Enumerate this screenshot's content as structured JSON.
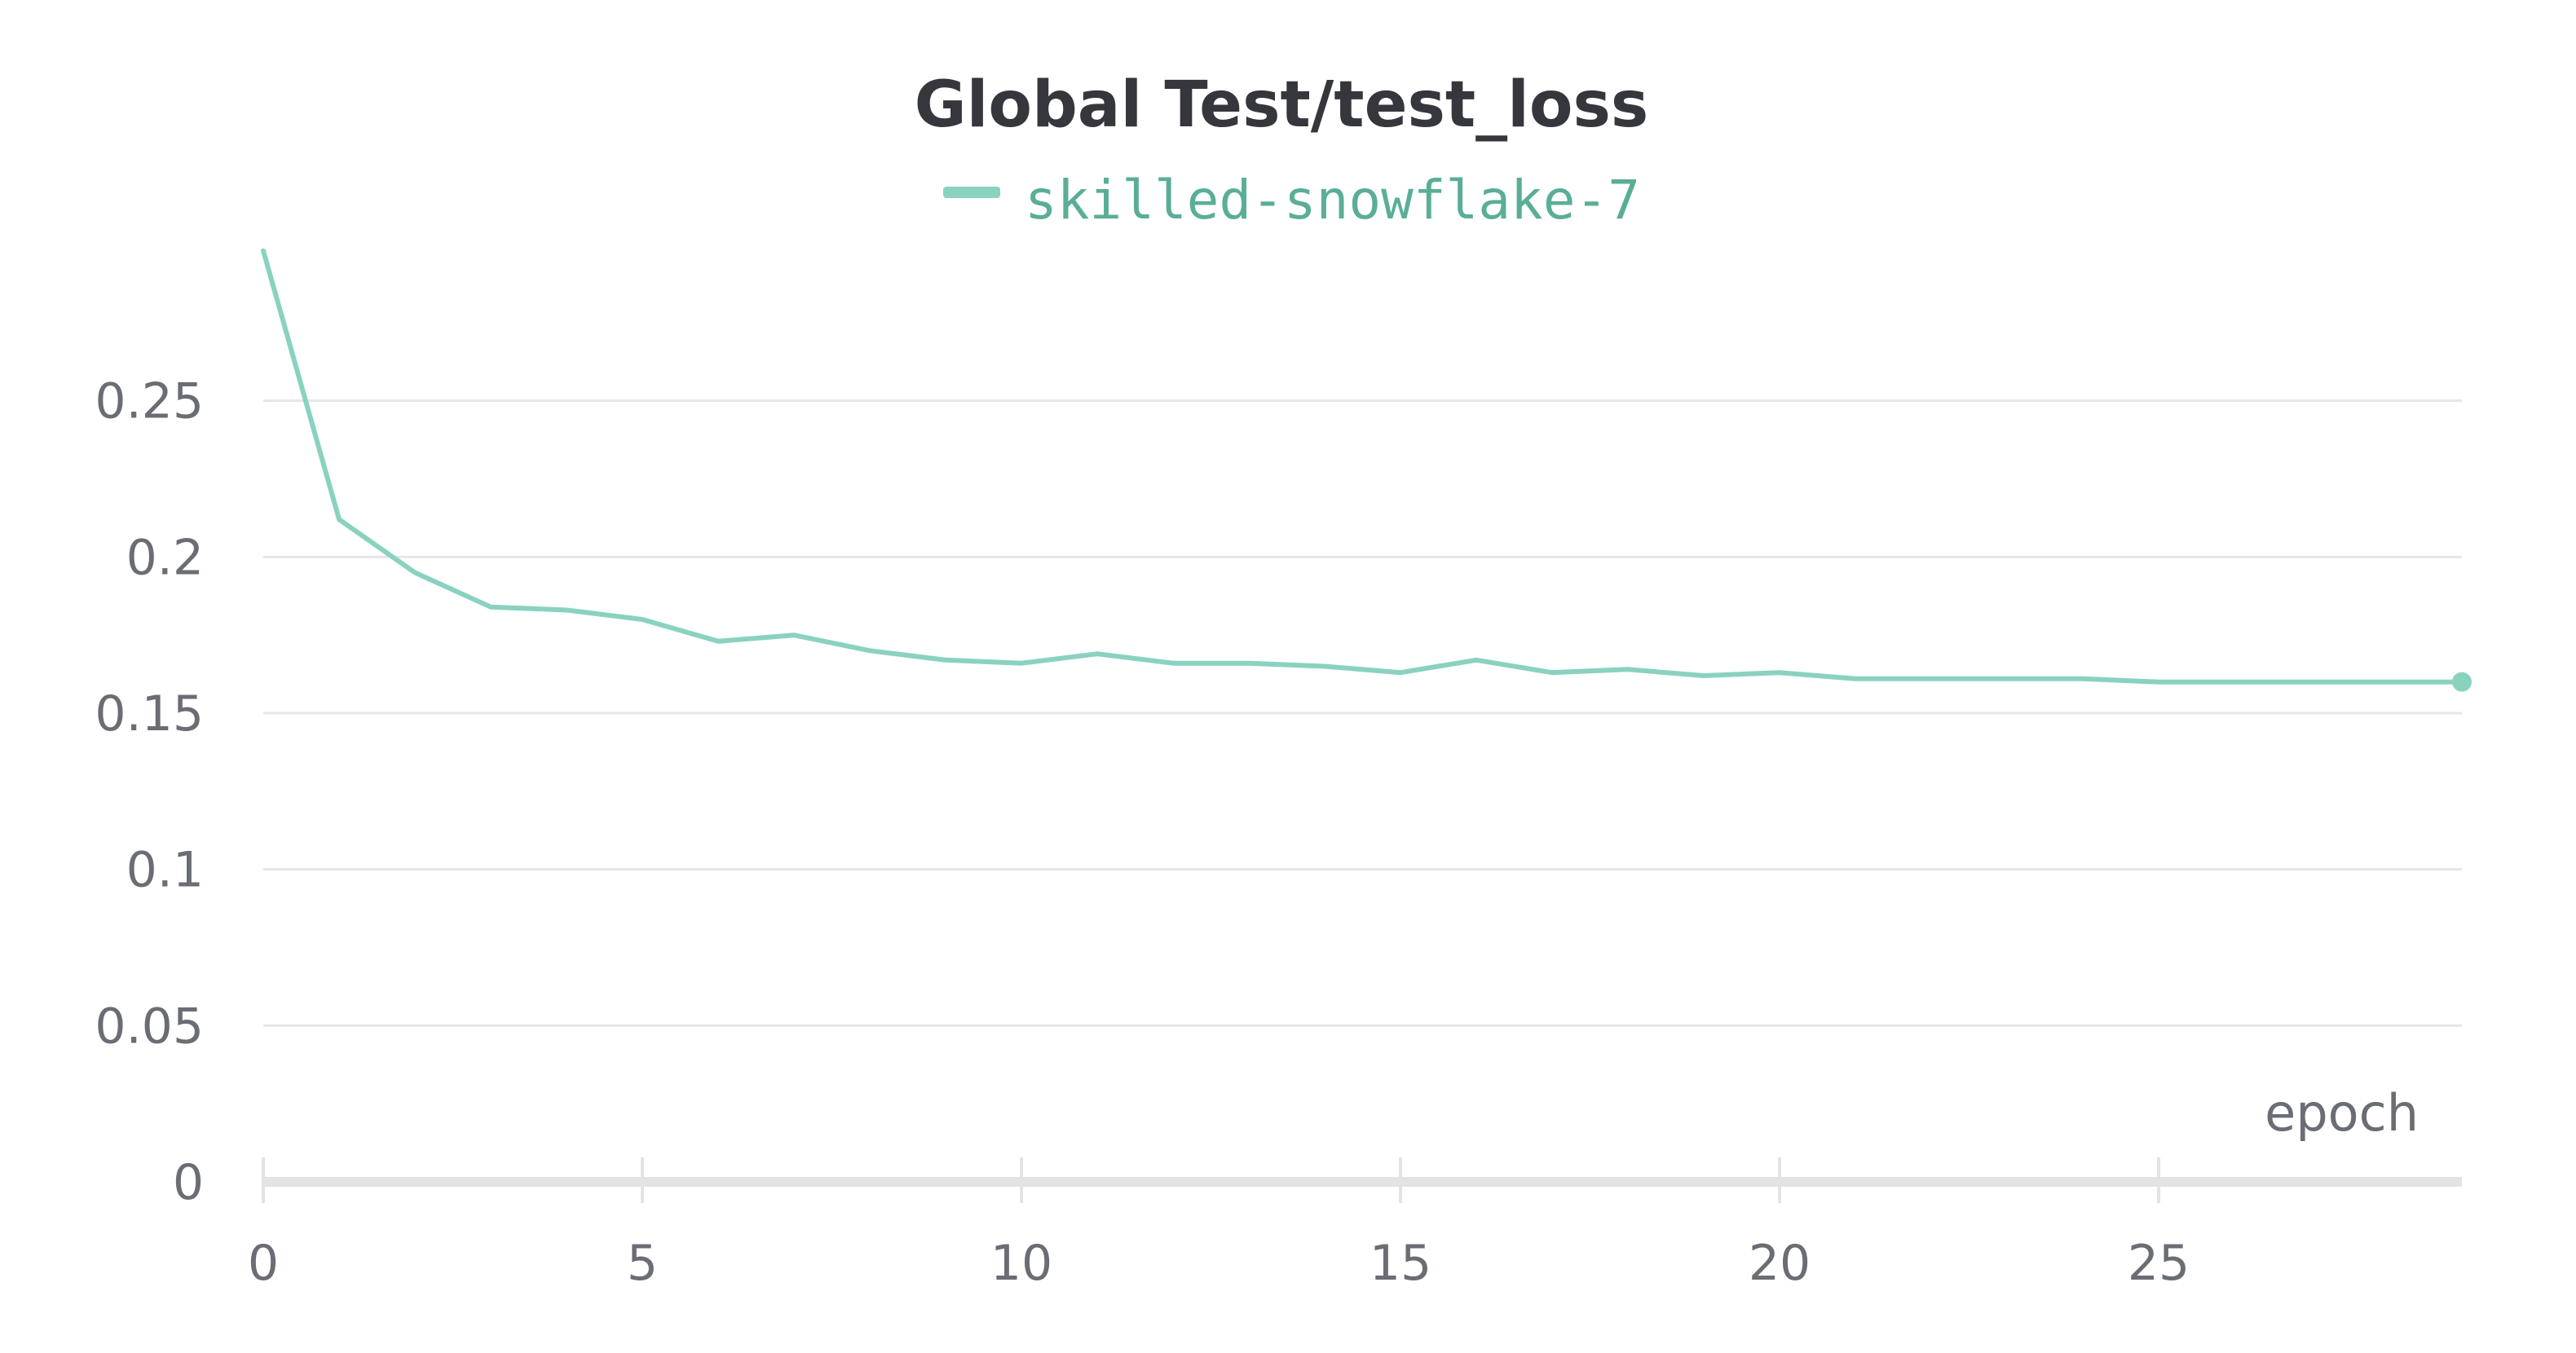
{
  "chart_data": {
    "type": "line",
    "title": "Global Test/test_loss",
    "xlabel": "epoch",
    "ylabel": "",
    "xlim": [
      0,
      29
    ],
    "ylim": [
      0,
      0.3
    ],
    "x_ticks": [
      0,
      5,
      10,
      15,
      20,
      25
    ],
    "x_tick_labels": [
      "0",
      "5",
      "10",
      "15",
      "20",
      "25"
    ],
    "y_ticks": [
      0,
      0.05,
      0.1,
      0.15,
      0.2,
      0.25
    ],
    "y_tick_labels": [
      "0",
      "0.05",
      "0.1",
      "0.15",
      "0.2",
      "0.25"
    ],
    "grid": true,
    "legend_position": "top-center",
    "series": [
      {
        "name": "skilled-snowflake-7",
        "color": "#8ad2c0",
        "label_color": "#5aae97",
        "x": [
          0,
          1,
          2,
          3,
          4,
          5,
          6,
          7,
          8,
          9,
          10,
          11,
          12,
          13,
          14,
          15,
          16,
          17,
          18,
          19,
          20,
          21,
          22,
          23,
          24,
          25,
          26,
          27,
          28,
          29
        ],
        "values": [
          0.298,
          0.212,
          0.195,
          0.184,
          0.183,
          0.18,
          0.173,
          0.175,
          0.17,
          0.167,
          0.166,
          0.169,
          0.166,
          0.166,
          0.165,
          0.163,
          0.167,
          0.163,
          0.164,
          0.162,
          0.163,
          0.161,
          0.161,
          0.161,
          0.161,
          0.16,
          0.16,
          0.16,
          0.16,
          0.16
        ]
      }
    ]
  }
}
